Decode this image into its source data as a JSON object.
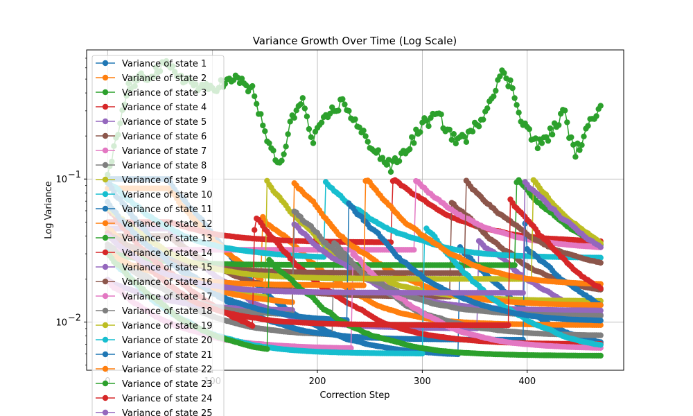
{
  "chart_data": {
    "type": "line",
    "title": "Variance Growth Over Time (Log Scale)",
    "xlabel": "Correction Step",
    "ylabel": "Log Variance",
    "yscale": "log",
    "xlim": [
      -20,
      492
    ],
    "ylim": [
      0.0046,
      0.8
    ],
    "x_ticks": [
      {
        "value": 0,
        "label": "0"
      },
      {
        "value": 100,
        "label": "100"
      },
      {
        "value": 200,
        "label": "200"
      },
      {
        "value": 300,
        "label": "300"
      },
      {
        "value": 400,
        "label": "400"
      }
    ],
    "y_ticks": [
      {
        "value": 0.1,
        "base": "10",
        "exp": "−1"
      },
      {
        "value": 0.01,
        "base": "10",
        "exp": "−2"
      }
    ],
    "grid": true,
    "legend_position": "upper-left",
    "marker": "circle",
    "x_range": [
      0,
      470
    ],
    "colors": [
      "#1f77b4",
      "#ff7f0e",
      "#2ca02c",
      "#d62728",
      "#9467bd",
      "#8c564b",
      "#e377c2",
      "#7f7f7f",
      "#bcbd22",
      "#17becf"
    ],
    "series": [
      {
        "name": "Variance of state 1"
      },
      {
        "name": "Variance of state 2"
      },
      {
        "name": "Variance of state 3"
      },
      {
        "name": "Variance of state 4"
      },
      {
        "name": "Variance of state 5"
      },
      {
        "name": "Variance of state 6"
      },
      {
        "name": "Variance of state 7"
      },
      {
        "name": "Variance of state 8"
      },
      {
        "name": "Variance of state 9"
      },
      {
        "name": "Variance of state 10"
      },
      {
        "name": "Variance of state 11"
      },
      {
        "name": "Variance of state 12"
      },
      {
        "name": "Variance of state 13"
      },
      {
        "name": "Variance of state 14"
      },
      {
        "name": "Variance of state 15"
      },
      {
        "name": "Variance of state 16"
      },
      {
        "name": "Variance of state 17"
      },
      {
        "name": "Variance of state 18"
      },
      {
        "name": "Variance of state 19"
      },
      {
        "name": "Variance of state 20"
      },
      {
        "name": "Variance of state 21"
      },
      {
        "name": "Variance of state 22"
      },
      {
        "name": "Variance of state 23"
      },
      {
        "name": "Variance of state 24"
      },
      {
        "name": "Variance of state 25"
      }
    ],
    "levels": {
      "flat_high": [
        0.1,
        0.086,
        0.07,
        0.05,
        0.045,
        0.04
      ],
      "floor": [
        0.0058,
        0.006,
        0.0065,
        0.007,
        0.0075,
        0.008,
        0.009,
        0.0095,
        0.01,
        0.011,
        0.012,
        0.013,
        0.014,
        0.015,
        0.016,
        0.018,
        0.02,
        0.022,
        0.025,
        0.028,
        0.032,
        0.036
      ],
      "state3_peaks": [
        {
          "x": 0,
          "y": 0.1
        },
        {
          "x": 20,
          "y": 0.45
        },
        {
          "x": 55,
          "y": 0.62
        },
        {
          "x": 90,
          "y": 0.42
        },
        {
          "x": 125,
          "y": 0.5
        },
        {
          "x": 140,
          "y": 0.4
        },
        {
          "x": 150,
          "y": 0.2
        },
        {
          "x": 165,
          "y": 0.12
        },
        {
          "x": 175,
          "y": 0.25
        },
        {
          "x": 185,
          "y": 0.38
        },
        {
          "x": 195,
          "y": 0.18
        },
        {
          "x": 210,
          "y": 0.28
        },
        {
          "x": 225,
          "y": 0.35
        },
        {
          "x": 240,
          "y": 0.22
        },
        {
          "x": 255,
          "y": 0.16
        },
        {
          "x": 270,
          "y": 0.12
        },
        {
          "x": 285,
          "y": 0.16
        },
        {
          "x": 300,
          "y": 0.24
        },
        {
          "x": 315,
          "y": 0.28
        },
        {
          "x": 330,
          "y": 0.19
        },
        {
          "x": 345,
          "y": 0.2
        },
        {
          "x": 360,
          "y": 0.3
        },
        {
          "x": 375,
          "y": 0.55
        },
        {
          "x": 385,
          "y": 0.45
        },
        {
          "x": 395,
          "y": 0.26
        },
        {
          "x": 410,
          "y": 0.17
        },
        {
          "x": 425,
          "y": 0.22
        },
        {
          "x": 435,
          "y": 0.3
        },
        {
          "x": 445,
          "y": 0.15
        },
        {
          "x": 455,
          "y": 0.2
        },
        {
          "x": 470,
          "y": 0.35
        }
      ]
    }
  }
}
